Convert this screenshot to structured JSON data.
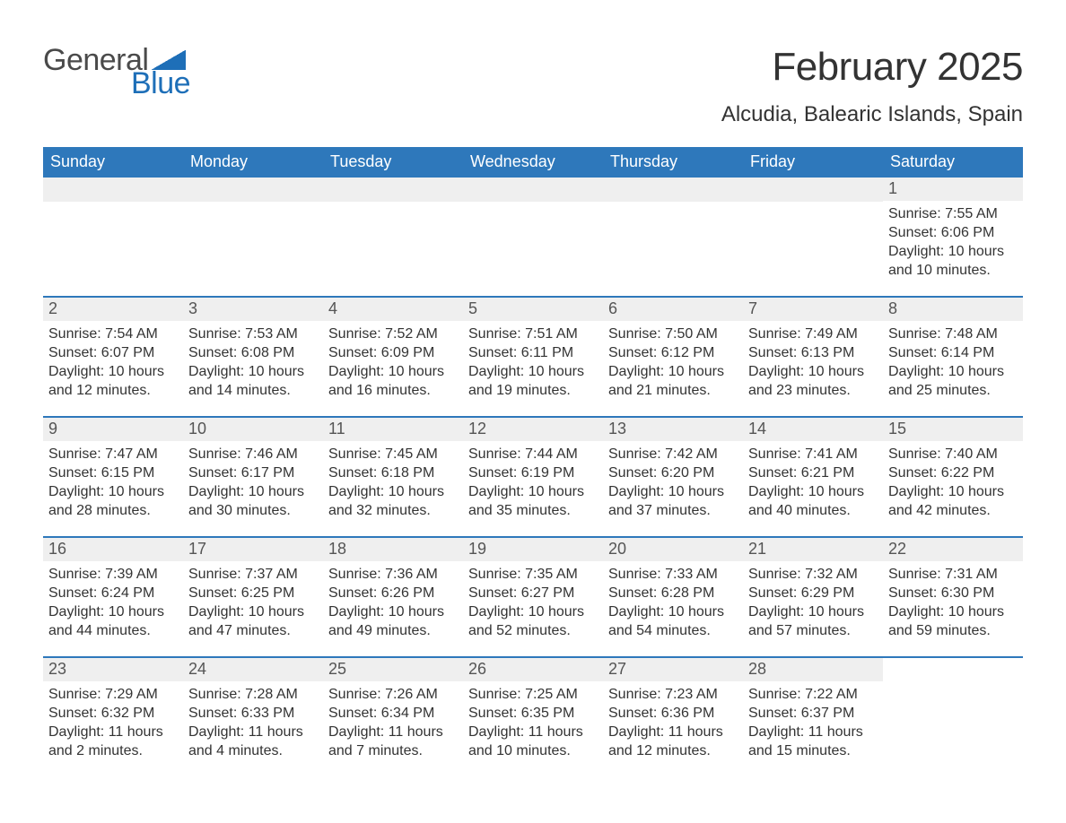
{
  "logo": {
    "general": "General",
    "blue": "Blue"
  },
  "title": "February 2025",
  "location": "Alcudia, Balearic Islands, Spain",
  "colors": {
    "header_bg": "#2e78bb",
    "header_text": "#ffffff",
    "daynum_bg": "#efefef",
    "body_text": "#333333",
    "week_border": "#2e78bb",
    "logo_gray": "#4a4a4a",
    "logo_blue": "#1e6fb8"
  },
  "typography": {
    "title_fontsize": 44,
    "location_fontsize": 24,
    "dow_fontsize": 18,
    "daynum_fontsize": 18,
    "body_fontsize": 16
  },
  "days_of_week": [
    "Sunday",
    "Monday",
    "Tuesday",
    "Wednesday",
    "Thursday",
    "Friday",
    "Saturday"
  ],
  "weeks": [
    [
      {
        "blank": true
      },
      {
        "blank": true
      },
      {
        "blank": true
      },
      {
        "blank": true
      },
      {
        "blank": true
      },
      {
        "blank": true
      },
      {
        "n": "1",
        "sunrise": "Sunrise: 7:55 AM",
        "sunset": "Sunset: 6:06 PM",
        "dl1": "Daylight: 10 hours",
        "dl2": "and 10 minutes."
      }
    ],
    [
      {
        "n": "2",
        "sunrise": "Sunrise: 7:54 AM",
        "sunset": "Sunset: 6:07 PM",
        "dl1": "Daylight: 10 hours",
        "dl2": "and 12 minutes."
      },
      {
        "n": "3",
        "sunrise": "Sunrise: 7:53 AM",
        "sunset": "Sunset: 6:08 PM",
        "dl1": "Daylight: 10 hours",
        "dl2": "and 14 minutes."
      },
      {
        "n": "4",
        "sunrise": "Sunrise: 7:52 AM",
        "sunset": "Sunset: 6:09 PM",
        "dl1": "Daylight: 10 hours",
        "dl2": "and 16 minutes."
      },
      {
        "n": "5",
        "sunrise": "Sunrise: 7:51 AM",
        "sunset": "Sunset: 6:11 PM",
        "dl1": "Daylight: 10 hours",
        "dl2": "and 19 minutes."
      },
      {
        "n": "6",
        "sunrise": "Sunrise: 7:50 AM",
        "sunset": "Sunset: 6:12 PM",
        "dl1": "Daylight: 10 hours",
        "dl2": "and 21 minutes."
      },
      {
        "n": "7",
        "sunrise": "Sunrise: 7:49 AM",
        "sunset": "Sunset: 6:13 PM",
        "dl1": "Daylight: 10 hours",
        "dl2": "and 23 minutes."
      },
      {
        "n": "8",
        "sunrise": "Sunrise: 7:48 AM",
        "sunset": "Sunset: 6:14 PM",
        "dl1": "Daylight: 10 hours",
        "dl2": "and 25 minutes."
      }
    ],
    [
      {
        "n": "9",
        "sunrise": "Sunrise: 7:47 AM",
        "sunset": "Sunset: 6:15 PM",
        "dl1": "Daylight: 10 hours",
        "dl2": "and 28 minutes."
      },
      {
        "n": "10",
        "sunrise": "Sunrise: 7:46 AM",
        "sunset": "Sunset: 6:17 PM",
        "dl1": "Daylight: 10 hours",
        "dl2": "and 30 minutes."
      },
      {
        "n": "11",
        "sunrise": "Sunrise: 7:45 AM",
        "sunset": "Sunset: 6:18 PM",
        "dl1": "Daylight: 10 hours",
        "dl2": "and 32 minutes."
      },
      {
        "n": "12",
        "sunrise": "Sunrise: 7:44 AM",
        "sunset": "Sunset: 6:19 PM",
        "dl1": "Daylight: 10 hours",
        "dl2": "and 35 minutes."
      },
      {
        "n": "13",
        "sunrise": "Sunrise: 7:42 AM",
        "sunset": "Sunset: 6:20 PM",
        "dl1": "Daylight: 10 hours",
        "dl2": "and 37 minutes."
      },
      {
        "n": "14",
        "sunrise": "Sunrise: 7:41 AM",
        "sunset": "Sunset: 6:21 PM",
        "dl1": "Daylight: 10 hours",
        "dl2": "and 40 minutes."
      },
      {
        "n": "15",
        "sunrise": "Sunrise: 7:40 AM",
        "sunset": "Sunset: 6:22 PM",
        "dl1": "Daylight: 10 hours",
        "dl2": "and 42 minutes."
      }
    ],
    [
      {
        "n": "16",
        "sunrise": "Sunrise: 7:39 AM",
        "sunset": "Sunset: 6:24 PM",
        "dl1": "Daylight: 10 hours",
        "dl2": "and 44 minutes."
      },
      {
        "n": "17",
        "sunrise": "Sunrise: 7:37 AM",
        "sunset": "Sunset: 6:25 PM",
        "dl1": "Daylight: 10 hours",
        "dl2": "and 47 minutes."
      },
      {
        "n": "18",
        "sunrise": "Sunrise: 7:36 AM",
        "sunset": "Sunset: 6:26 PM",
        "dl1": "Daylight: 10 hours",
        "dl2": "and 49 minutes."
      },
      {
        "n": "19",
        "sunrise": "Sunrise: 7:35 AM",
        "sunset": "Sunset: 6:27 PM",
        "dl1": "Daylight: 10 hours",
        "dl2": "and 52 minutes."
      },
      {
        "n": "20",
        "sunrise": "Sunrise: 7:33 AM",
        "sunset": "Sunset: 6:28 PM",
        "dl1": "Daylight: 10 hours",
        "dl2": "and 54 minutes."
      },
      {
        "n": "21",
        "sunrise": "Sunrise: 7:32 AM",
        "sunset": "Sunset: 6:29 PM",
        "dl1": "Daylight: 10 hours",
        "dl2": "and 57 minutes."
      },
      {
        "n": "22",
        "sunrise": "Sunrise: 7:31 AM",
        "sunset": "Sunset: 6:30 PM",
        "dl1": "Daylight: 10 hours",
        "dl2": "and 59 minutes."
      }
    ],
    [
      {
        "n": "23",
        "sunrise": "Sunrise: 7:29 AM",
        "sunset": "Sunset: 6:32 PM",
        "dl1": "Daylight: 11 hours",
        "dl2": "and 2 minutes."
      },
      {
        "n": "24",
        "sunrise": "Sunrise: 7:28 AM",
        "sunset": "Sunset: 6:33 PM",
        "dl1": "Daylight: 11 hours",
        "dl2": "and 4 minutes."
      },
      {
        "n": "25",
        "sunrise": "Sunrise: 7:26 AM",
        "sunset": "Sunset: 6:34 PM",
        "dl1": "Daylight: 11 hours",
        "dl2": "and 7 minutes."
      },
      {
        "n": "26",
        "sunrise": "Sunrise: 7:25 AM",
        "sunset": "Sunset: 6:35 PM",
        "dl1": "Daylight: 11 hours",
        "dl2": "and 10 minutes."
      },
      {
        "n": "27",
        "sunrise": "Sunrise: 7:23 AM",
        "sunset": "Sunset: 6:36 PM",
        "dl1": "Daylight: 11 hours",
        "dl2": "and 12 minutes."
      },
      {
        "n": "28",
        "sunrise": "Sunrise: 7:22 AM",
        "sunset": "Sunset: 6:37 PM",
        "dl1": "Daylight: 11 hours",
        "dl2": "and 15 minutes."
      },
      {
        "blank": true,
        "noheader": true
      }
    ]
  ]
}
